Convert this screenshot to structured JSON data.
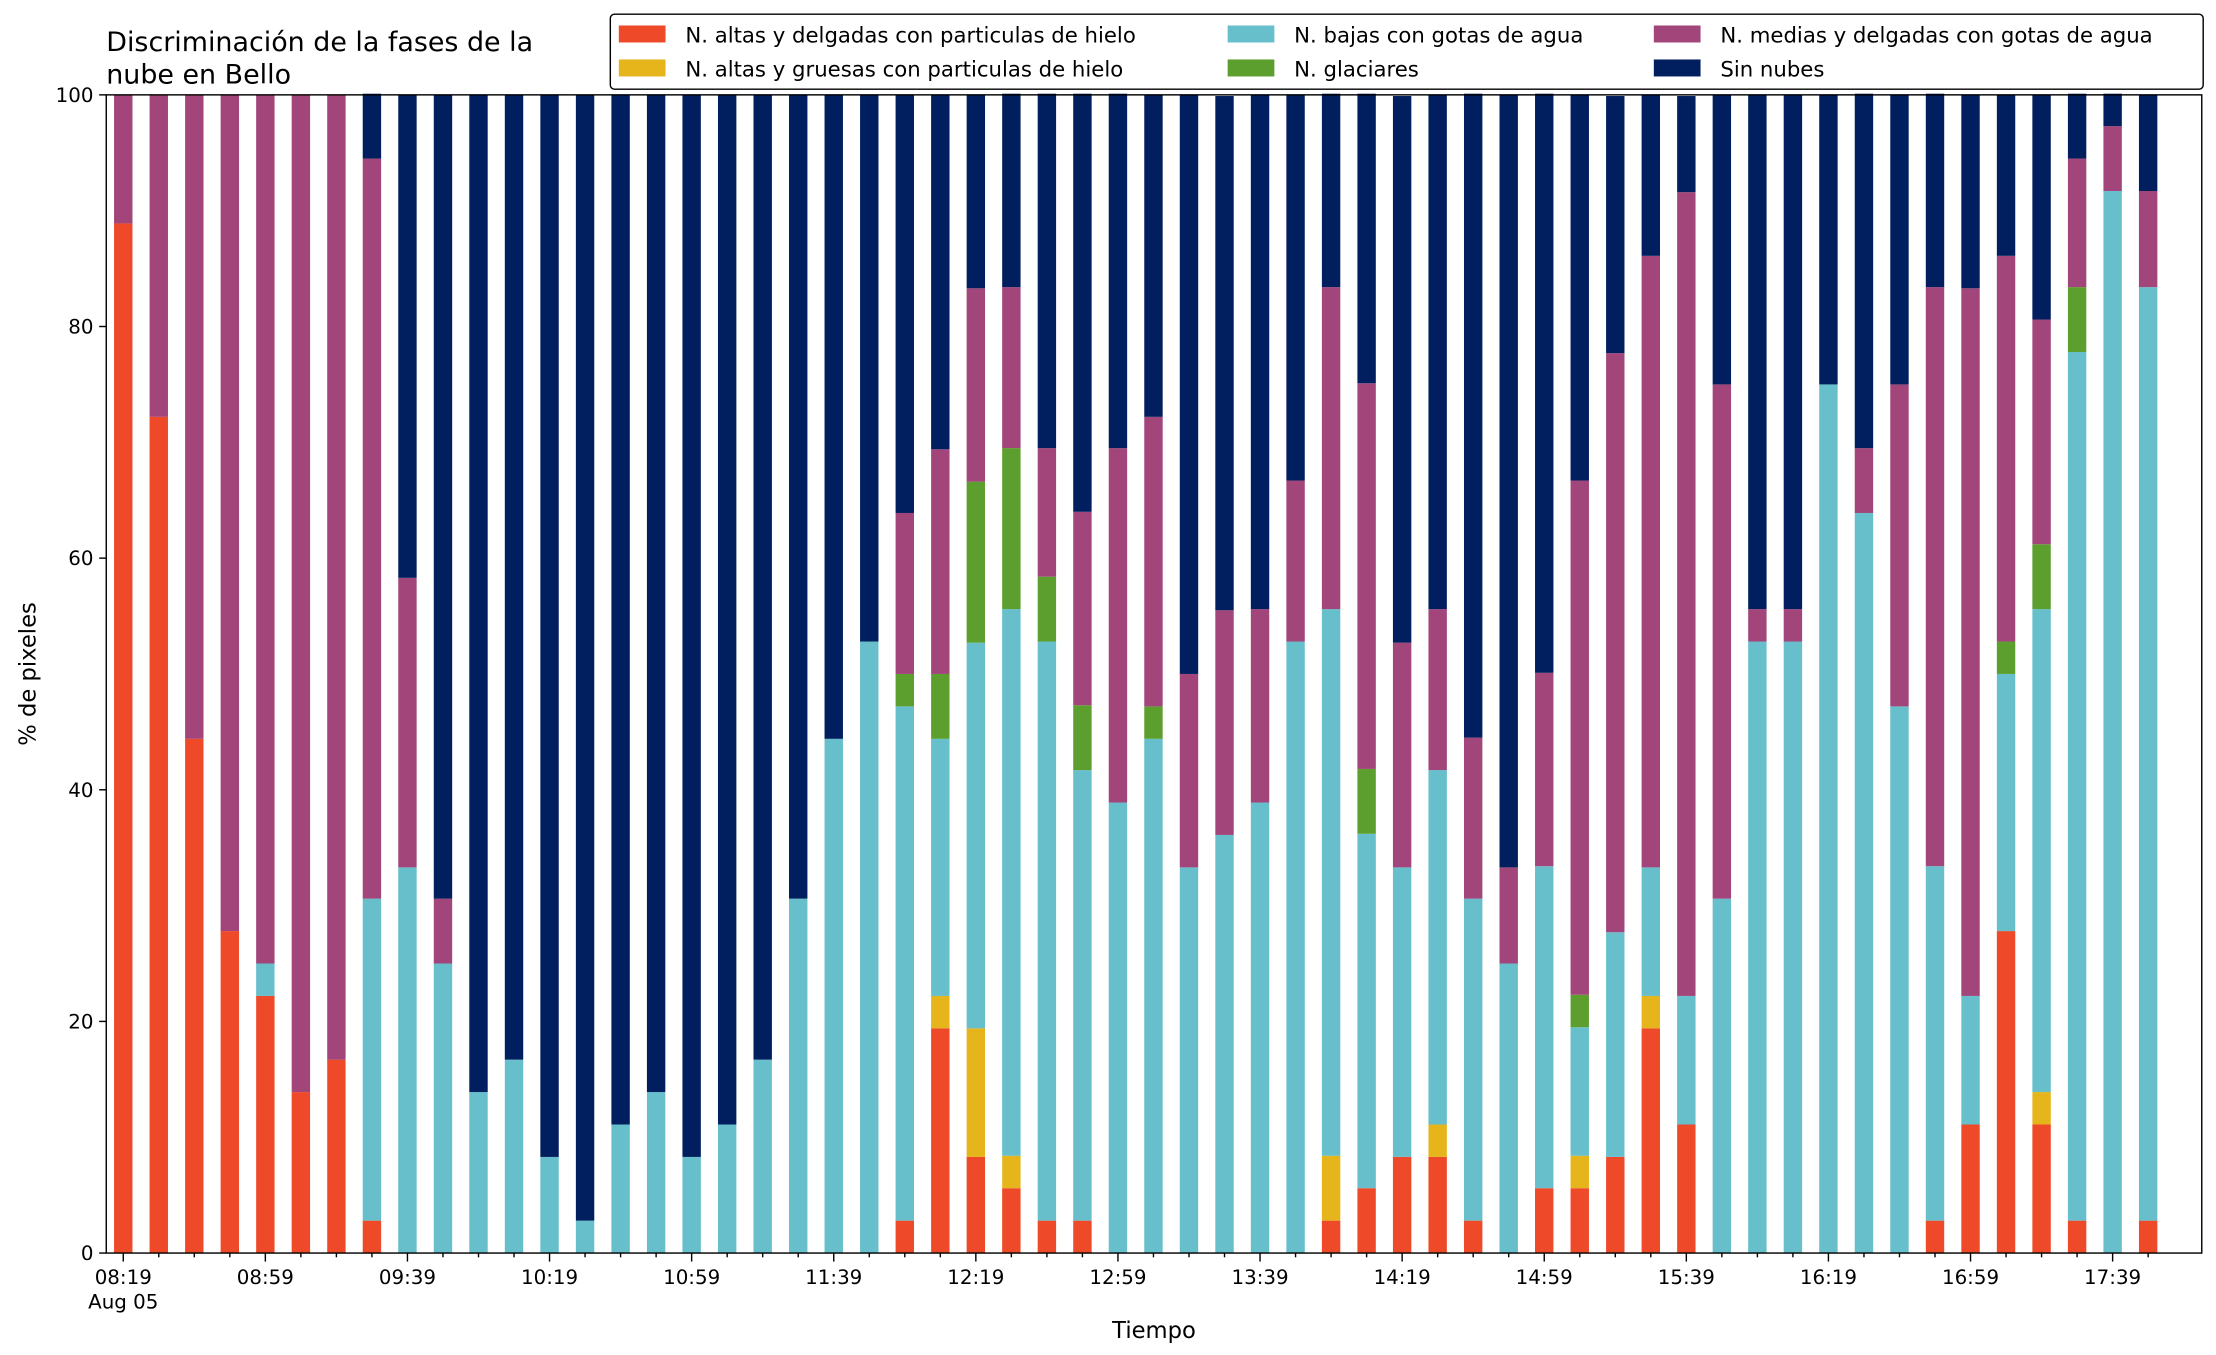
{
  "chart_data": {
    "type": "stacked_bar",
    "title": [
      "Discriminación de la fases de la",
      "nube en Bello"
    ],
    "x_label": "Tiempo",
    "y_label": "% de pixeles",
    "categories": [
      "08:19",
      null,
      null,
      null,
      "08:59",
      null,
      null,
      null,
      "09:39",
      null,
      null,
      null,
      "10:19",
      null,
      null,
      null,
      "10:59",
      null,
      null,
      null,
      "11:39",
      null,
      null,
      null,
      "12:19",
      null,
      null,
      null,
      "12:59",
      null,
      null,
      null,
      "13:39",
      null,
      null,
      null,
      "14:19",
      null,
      null,
      null,
      "14:59",
      null,
      null,
      null,
      "15:39",
      null,
      null,
      null,
      "16:19",
      null,
      null,
      null,
      "16:59",
      null,
      null,
      null,
      "17:39",
      null
    ],
    "date_label": "Aug 05",
    "ylim": [
      0,
      100
    ],
    "yticks": [
      0,
      20,
      40,
      60,
      80,
      100
    ],
    "legend": "top-right",
    "series": [
      {
        "name": "N. altas y delgadas con particulas de hielo",
        "color": "#ee4a2a",
        "values": [
          88.9,
          72.2,
          44.4,
          27.8,
          22.2,
          13.9,
          16.7,
          2.8,
          0,
          0,
          0,
          0,
          0,
          0,
          0,
          0,
          0,
          0,
          0,
          0,
          0,
          0,
          2.8,
          19.4,
          8.3,
          5.6,
          2.8,
          2.8,
          0,
          0,
          0,
          0,
          0,
          0,
          2.8,
          5.6,
          8.3,
          8.3,
          2.8,
          0,
          5.6,
          5.6,
          8.3,
          19.4,
          11.1,
          0,
          0,
          0,
          0,
          0,
          0,
          2.8,
          11.1,
          27.8,
          11.1,
          2.8,
          0,
          2.8
        ]
      },
      {
        "name": "N. altas y gruesas con particulas de hielo",
        "color": "#e6b51c",
        "values": [
          0,
          0,
          0,
          0,
          0,
          0,
          0,
          0,
          0,
          0,
          0,
          0,
          0,
          0,
          0,
          0,
          0,
          0,
          0,
          0,
          0,
          0,
          0,
          2.8,
          11.1,
          2.8,
          0,
          0,
          0,
          0,
          0,
          0,
          0,
          0,
          5.6,
          0,
          0,
          2.8,
          0,
          0,
          0,
          2.8,
          0,
          2.8,
          0,
          0,
          0,
          0,
          0,
          0,
          0,
          0,
          0,
          0,
          2.8,
          0,
          0,
          0
        ]
      },
      {
        "name": "N. bajas con gotas de agua",
        "color": "#66bfcb",
        "values": [
          0,
          0,
          0,
          0,
          2.8,
          0,
          0,
          27.8,
          33.3,
          25,
          13.9,
          16.7,
          8.3,
          2.8,
          11.1,
          13.9,
          8.3,
          11.1,
          16.7,
          30.6,
          44.4,
          52.8,
          44.4,
          22.2,
          33.3,
          47.2,
          50,
          38.9,
          38.9,
          44.4,
          33.3,
          36.1,
          38.9,
          52.8,
          47.2,
          30.6,
          25,
          30.6,
          27.8,
          25,
          27.8,
          11.1,
          19.4,
          11.1,
          11.1,
          30.6,
          52.8,
          52.8,
          75,
          63.9,
          47.2,
          30.6,
          11.1,
          22.2,
          41.7,
          75,
          91.7,
          80.6
        ]
      },
      {
        "name": "N. glaciares",
        "color": "#5c9f2e",
        "values": [
          0,
          0,
          0,
          0,
          0,
          0,
          0,
          0,
          0,
          0,
          0,
          0,
          0,
          0,
          0,
          0,
          0,
          0,
          0,
          0,
          0,
          0,
          2.8,
          5.6,
          13.9,
          13.9,
          5.6,
          5.6,
          0,
          2.8,
          0,
          0,
          0,
          0,
          0,
          5.6,
          0,
          0,
          0,
          0,
          0,
          2.8,
          0,
          0,
          0,
          0,
          0,
          0,
          0,
          0,
          0,
          0,
          0,
          2.8,
          5.6,
          5.6,
          0,
          0
        ]
      },
      {
        "name": "N. medias y delgadas con gotas de agua",
        "color": "#a2457a",
        "values": [
          11.1,
          27.8,
          55.6,
          72.2,
          75,
          86.1,
          83.3,
          63.9,
          25,
          5.6,
          0,
          0,
          0,
          0,
          0,
          0,
          0,
          0,
          0,
          0,
          0,
          0,
          13.9,
          19.4,
          16.7,
          13.9,
          11.1,
          16.7,
          30.6,
          25,
          16.7,
          19.4,
          16.7,
          13.9,
          27.8,
          33.3,
          19.4,
          13.9,
          13.9,
          8.3,
          16.7,
          44.4,
          50,
          52.8,
          69.4,
          44.4,
          2.8,
          2.8,
          0,
          5.6,
          27.8,
          50,
          61.1,
          33.3,
          19.4,
          11.1,
          5.6,
          8.3
        ]
      },
      {
        "name": "Sin nubes",
        "color": "#011f5e",
        "values": [
          0,
          0,
          0,
          0,
          0,
          0,
          0,
          5.6,
          41.7,
          69.4,
          86.1,
          83.3,
          91.7,
          97.2,
          88.9,
          86.1,
          91.7,
          88.9,
          83.3,
          69.4,
          55.6,
          47.2,
          36.1,
          30.6,
          16.7,
          16.7,
          30.6,
          36.1,
          30.6,
          27.8,
          50,
          44.4,
          44.4,
          33.3,
          16.7,
          25,
          47.2,
          44.4,
          55.6,
          66.7,
          50,
          33.3,
          22.2,
          13.9,
          8.3,
          25,
          44.4,
          44.4,
          25,
          30.6,
          25,
          16.7,
          16.7,
          13.9,
          19.4,
          5.6,
          2.8,
          8.3
        ]
      }
    ]
  }
}
